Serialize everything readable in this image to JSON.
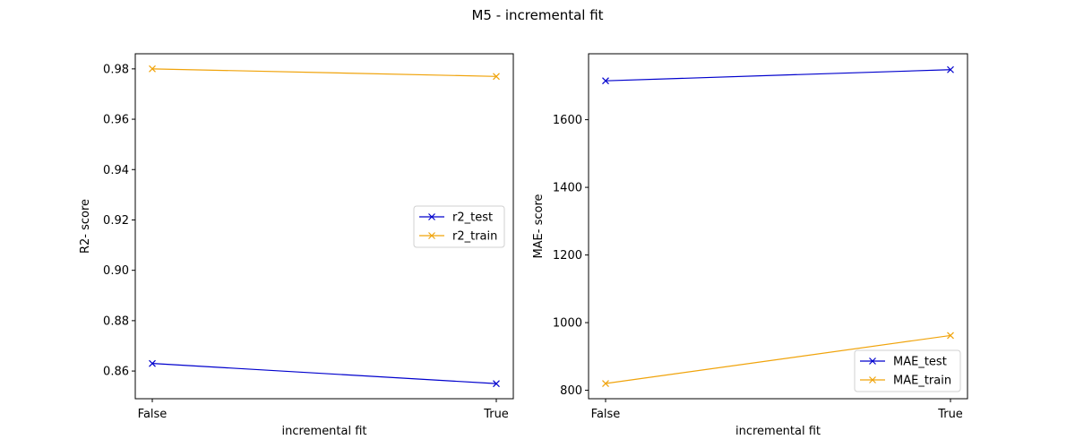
{
  "figure": {
    "suptitle": "M5 - incremental fit"
  },
  "chart_data": [
    {
      "type": "line",
      "xlabel": "incremental fit",
      "ylabel": "R2- score",
      "categories": [
        "False",
        "True"
      ],
      "ylim": [
        0.849,
        0.986
      ],
      "yticks": [
        0.86,
        0.88,
        0.9,
        0.92,
        0.94,
        0.96,
        0.98
      ],
      "ytick_labels": [
        "0.86",
        "0.88",
        "0.90",
        "0.92",
        "0.94",
        "0.96",
        "0.98"
      ],
      "legend_position": "center-right",
      "series": [
        {
          "name": "r2_test",
          "values": [
            0.863,
            0.855
          ],
          "color": "#0000cd",
          "marker": "x"
        },
        {
          "name": "r2_train",
          "values": [
            0.98,
            0.977
          ],
          "color": "#f0a30a",
          "marker": "x"
        }
      ]
    },
    {
      "type": "line",
      "xlabel": "incremental fit",
      "ylabel": "MAE- score",
      "categories": [
        "False",
        "True"
      ],
      "ylim": [
        775,
        1795
      ],
      "yticks": [
        800,
        1000,
        1200,
        1400,
        1600
      ],
      "ytick_labels": [
        "800",
        "1000",
        "1200",
        "1400",
        "1600"
      ],
      "legend_position": "lower-right",
      "series": [
        {
          "name": "MAE_test",
          "values": [
            1715,
            1748
          ],
          "color": "#0000cd",
          "marker": "x"
        },
        {
          "name": "MAE_train",
          "values": [
            820,
            962
          ],
          "color": "#f0a30a",
          "marker": "x"
        }
      ]
    }
  ]
}
